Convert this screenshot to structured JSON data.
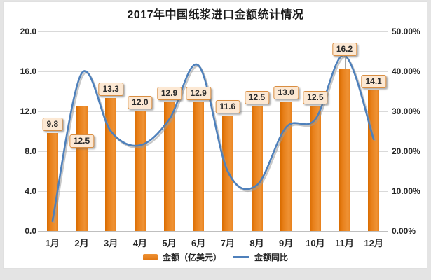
{
  "title": "2017年中国纸浆进口金额统计情况",
  "chart_data": {
    "type": "combo-bar-line",
    "categories": [
      "1月",
      "2月",
      "3月",
      "4月",
      "5月",
      "6月",
      "7月",
      "8月",
      "9月",
      "10月",
      "11月",
      "12月"
    ],
    "series": [
      {
        "name": "金额（亿美元）",
        "type": "bar",
        "axis": "left",
        "values": [
          9.8,
          12.5,
          13.3,
          12.0,
          12.9,
          12.9,
          11.6,
          12.5,
          13.0,
          12.5,
          16.2,
          14.1
        ],
        "data_labels": [
          "9.8",
          "12.5",
          "13.3",
          "12.0",
          "12.9",
          "12.9",
          "11.6",
          "12.5",
          "13.0",
          "12.5",
          "16.2",
          "14.1"
        ]
      },
      {
        "name": "金额同比",
        "type": "line",
        "axis": "right",
        "values": [
          0.025,
          0.395,
          0.25,
          0.215,
          0.28,
          0.415,
          0.15,
          0.115,
          0.26,
          0.28,
          0.44,
          0.23
        ]
      }
    ],
    "left_axis": {
      "min": 0,
      "max": 20,
      "ticks": [
        "0.0",
        "4.0",
        "8.0",
        "12.0",
        "16.0",
        "20.0"
      ]
    },
    "right_axis": {
      "min": 0,
      "max": 0.5,
      "ticks": [
        "0.00%",
        "10.00%",
        "20.00%",
        "30.00%",
        "40.00%",
        "50.00%"
      ]
    },
    "grid": true,
    "legend_position": "bottom",
    "line_smoothed": true
  },
  "colors": {
    "bar": "#e8801a",
    "bar_dark_edge": "#d96c00",
    "bar_light_edge": "#ef9336",
    "line": "#4e80bb",
    "data_label_bg": "#fce8d3",
    "data_label_border": "#d98e42",
    "gridline": "#d9d9d9",
    "text": "#262626",
    "page_background": "#e4e4e4",
    "plot_background": "#ffffff"
  }
}
